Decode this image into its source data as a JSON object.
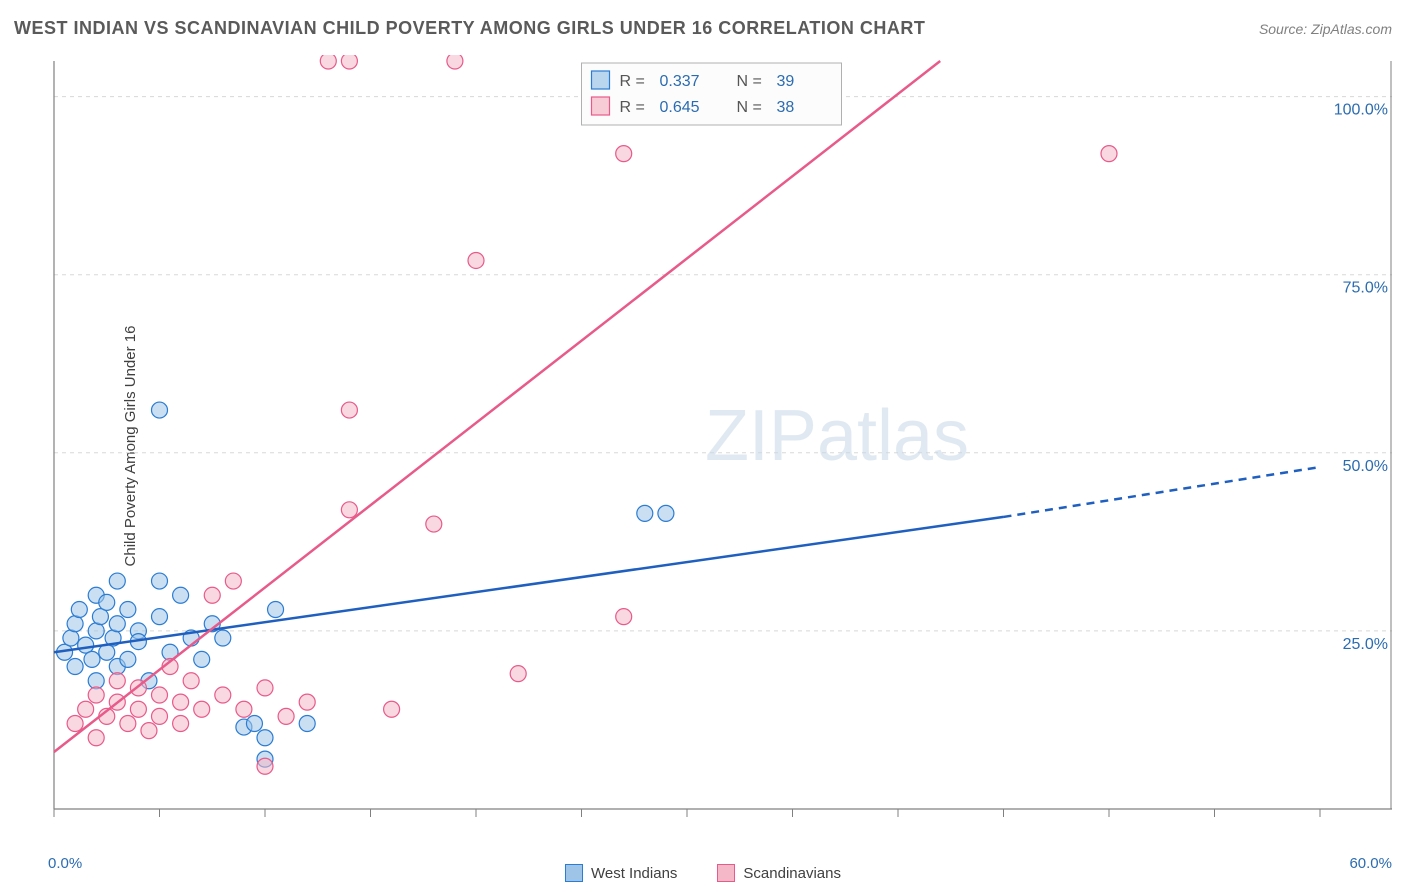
{
  "header": {
    "title": "WEST INDIAN VS SCANDINAVIAN CHILD POVERTY AMONG GIRLS UNDER 16 CORRELATION CHART",
    "source": "Source: ZipAtlas.com"
  },
  "chart": {
    "type": "scatter",
    "y_axis_label": "Child Poverty Among Girls Under 16",
    "watermark_part1": "ZIP",
    "watermark_part2": "atlas",
    "background_color": "#ffffff",
    "grid_color": "#d8d8d8",
    "axis_color": "#808080",
    "tick_label_color": "#2b6cb0",
    "xlim": [
      0,
      60
    ],
    "ylim": [
      0,
      105
    ],
    "x_ticks": [
      0,
      5,
      10,
      15,
      20,
      25,
      30,
      35,
      40,
      45,
      50,
      55,
      60
    ],
    "x_tick_labels": {
      "0": "0.0%",
      "60": "60.0%"
    },
    "y_ticks": [
      25,
      50,
      75,
      100
    ],
    "y_tick_labels": {
      "25": "25.0%",
      "50": "50.0%",
      "75": "75.0%",
      "100": "100.0%"
    },
    "marker_radius": 8,
    "marker_stroke_width": 1.2,
    "trend_line_width": 2.5,
    "series": [
      {
        "name": "West Indians",
        "fill_color": "#9ec5e8",
        "stroke_color": "#2b7cd3",
        "fill_opacity": 0.55,
        "R": "0.337",
        "N": "39",
        "trend_color": "#1f5fbf",
        "trend": {
          "x1": 0,
          "y1": 22,
          "x2": 45,
          "y2": 41,
          "dash_x2": 60,
          "dash_y2": 48
        },
        "points": [
          [
            0.5,
            22
          ],
          [
            0.8,
            24
          ],
          [
            1,
            26
          ],
          [
            1,
            20
          ],
          [
            1.2,
            28
          ],
          [
            1.5,
            23
          ],
          [
            1.8,
            21
          ],
          [
            2,
            30
          ],
          [
            2,
            25
          ],
          [
            2,
            18
          ],
          [
            2.2,
            27
          ],
          [
            2.5,
            29
          ],
          [
            2.5,
            22
          ],
          [
            2.8,
            24
          ],
          [
            3,
            32
          ],
          [
            3,
            26
          ],
          [
            3,
            20
          ],
          [
            3.5,
            28
          ],
          [
            3.5,
            21
          ],
          [
            4,
            25
          ],
          [
            4,
            23.5
          ],
          [
            4.5,
            18
          ],
          [
            5,
            27
          ],
          [
            5,
            32
          ],
          [
            5.5,
            22
          ],
          [
            6,
            30
          ],
          [
            6.5,
            24
          ],
          [
            7,
            21
          ],
          [
            7.5,
            26
          ],
          [
            8,
            24
          ],
          [
            9,
            11.5
          ],
          [
            9.5,
            12
          ],
          [
            10,
            10
          ],
          [
            10,
            7
          ],
          [
            10.5,
            28
          ],
          [
            5,
            56
          ],
          [
            12,
            12
          ],
          [
            28,
            41.5
          ],
          [
            29,
            41.5
          ]
        ]
      },
      {
        "name": "Scandinavians",
        "fill_color": "#f5b8c8",
        "stroke_color": "#e85a8a",
        "fill_opacity": 0.55,
        "R": "0.645",
        "N": "38",
        "trend_color": "#e85a8a",
        "trend": {
          "x1": 0,
          "y1": 8,
          "x2": 42,
          "y2": 105
        },
        "points": [
          [
            1,
            12
          ],
          [
            1.5,
            14
          ],
          [
            2,
            16
          ],
          [
            2,
            10
          ],
          [
            2.5,
            13
          ],
          [
            3,
            15
          ],
          [
            3,
            18
          ],
          [
            3.5,
            12
          ],
          [
            4,
            14
          ],
          [
            4,
            17
          ],
          [
            4.5,
            11
          ],
          [
            5,
            16
          ],
          [
            5,
            13
          ],
          [
            5.5,
            20
          ],
          [
            6,
            15
          ],
          [
            6,
            12
          ],
          [
            6.5,
            18
          ],
          [
            7,
            14
          ],
          [
            7.5,
            30
          ],
          [
            8,
            16
          ],
          [
            8.5,
            32
          ],
          [
            9,
            14
          ],
          [
            10,
            17
          ],
          [
            10,
            6
          ],
          [
            11,
            13
          ],
          [
            12,
            15
          ],
          [
            13,
            105
          ],
          [
            14,
            105
          ],
          [
            14,
            42
          ],
          [
            14,
            56
          ],
          [
            16,
            14
          ],
          [
            18,
            40
          ],
          [
            19,
            105
          ],
          [
            20,
            77
          ],
          [
            22,
            19
          ],
          [
            27,
            92
          ],
          [
            27,
            27
          ],
          [
            50,
            92
          ]
        ]
      }
    ],
    "top_legend": {
      "bg": "#fcfcfc",
      "border": "#b0b0b0",
      "text_color": "#555555",
      "value_color": "#2b6cb0",
      "R_label": "R =",
      "N_label": "N ="
    }
  },
  "bottom_legend": {
    "items": [
      {
        "label": "West Indians",
        "fill": "#9ec5e8",
        "stroke": "#2b7cd3"
      },
      {
        "label": "Scandinavians",
        "fill": "#f5b8c8",
        "stroke": "#e85a8a"
      }
    ]
  }
}
